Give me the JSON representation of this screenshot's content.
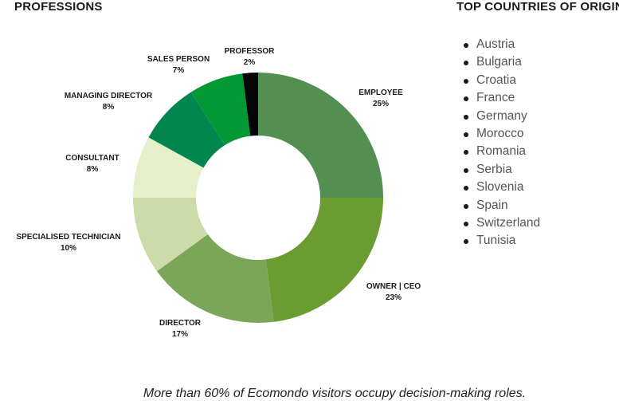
{
  "headings": {
    "professions": "PROFESSIONS",
    "countries": "TOP COUNTRIES OF ORIGIN"
  },
  "caption": "More than 60% of Ecomondo visitors occupy decision-making roles.",
  "countries": [
    "Austria",
    "Bulgaria",
    "Croatia",
    "France",
    "Germany",
    "Morocco",
    "Romania",
    "Serbia",
    "Slovenia",
    "Spain",
    "Switzerland",
    "Tunisia"
  ],
  "chart_data": {
    "type": "pie",
    "donut": true,
    "start": "top, clockwise",
    "slices": [
      {
        "label": "EMPLOYEE",
        "value_text": "25%",
        "value": 25,
        "color": "#548f52"
      },
      {
        "label": "OWNER | CEO",
        "value_text": "23%",
        "value": 23,
        "color": "#6b9c31"
      },
      {
        "label": "DIRECTOR",
        "value_text": "17%",
        "value": 17,
        "color": "#7ba659"
      },
      {
        "label": "SPECIALISED TECHNICIAN",
        "value_text": "10%",
        "value": 10,
        "color": "#cddaa9"
      },
      {
        "label": "CONSULTANT",
        "value_text": "8%",
        "value": 8,
        "color": "#e5f0cb"
      },
      {
        "label": "MANAGING DIRECTOR",
        "value_text": "8%",
        "value": 8,
        "color": "#038550"
      },
      {
        "label": "SALES PERSON",
        "value_text": "7%",
        "value": 7,
        "color": "#029934"
      },
      {
        "label": "PROFESSOR",
        "value_text": "2%",
        "value": 2,
        "color": "#050505"
      }
    ]
  }
}
